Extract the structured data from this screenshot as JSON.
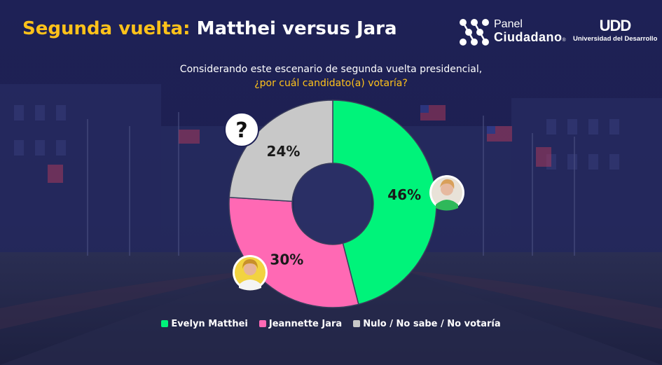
{
  "header": {
    "title_highlight": "Segunda vuelta:",
    "title_rest": "Matthei versus Jara"
  },
  "logos": {
    "panel_line1": "Panel",
    "panel_line2": "Ciudadano",
    "panel_mark": "®",
    "udd_mark": "UDD",
    "udd_name": "Universidad del Desarrollo"
  },
  "question": {
    "line1": "Considerando este escenario de segunda vuelta presidencial,",
    "line2": "¿por cuál candidato(a) votaría?"
  },
  "chart_data": {
    "type": "pie",
    "donut": true,
    "slices": [
      {
        "name": "Evelyn Matthei",
        "value": 46,
        "label": "46%",
        "color": "#00f37a"
      },
      {
        "name": "Jeannette Jara",
        "value": 30,
        "label": "30%",
        "color": "#ff69b4"
      },
      {
        "name": "Nulo / No sabe / No votaría",
        "value": 24,
        "label": "24%",
        "color": "#c8c8c8"
      }
    ],
    "legend_position": "bottom",
    "question_icon": "?"
  },
  "icons": {
    "question": "question-mark-icon",
    "avatar_matthei": "avatar-matthei",
    "avatar_jara": "avatar-jara"
  }
}
